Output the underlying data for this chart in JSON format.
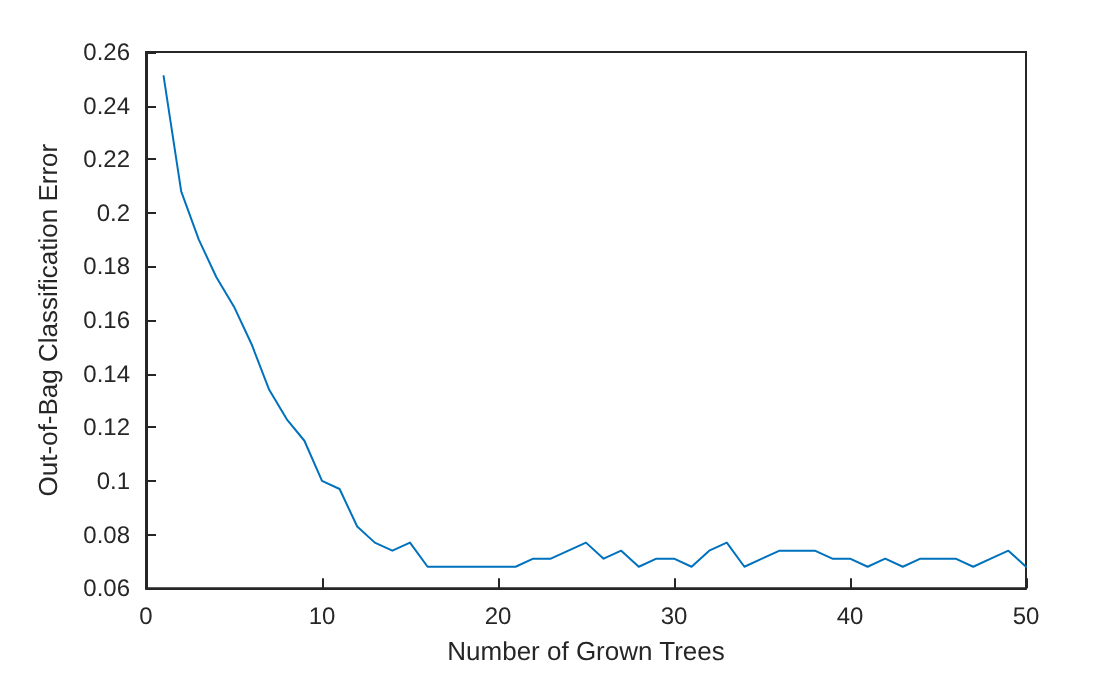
{
  "chart_data": {
    "type": "line",
    "xlabel": "Number of Grown Trees",
    "ylabel": "Out-of-Bag Classification Error",
    "x": [
      1,
      2,
      3,
      4,
      5,
      6,
      7,
      8,
      9,
      10,
      11,
      12,
      13,
      14,
      15,
      16,
      17,
      18,
      19,
      20,
      21,
      22,
      23,
      24,
      25,
      26,
      27,
      28,
      29,
      30,
      31,
      32,
      33,
      34,
      35,
      36,
      37,
      38,
      39,
      40,
      41,
      42,
      43,
      44,
      45,
      46,
      47,
      48,
      49,
      50
    ],
    "series": [
      {
        "color": "#0072bd",
        "values": [
          0.251,
          0.208,
          0.19,
          0.176,
          0.165,
          0.151,
          0.134,
          0.123,
          0.115,
          0.1,
          0.097,
          0.083,
          0.077,
          0.074,
          0.077,
          0.068,
          0.068,
          0.068,
          0.068,
          0.068,
          0.068,
          0.071,
          0.071,
          0.074,
          0.077,
          0.071,
          0.074,
          0.068,
          0.071,
          0.071,
          0.068,
          0.074,
          0.077,
          0.068,
          0.071,
          0.074,
          0.074,
          0.074,
          0.071,
          0.071,
          0.068,
          0.071,
          0.068,
          0.071,
          0.071,
          0.071,
          0.068,
          0.071,
          0.074,
          0.068
        ]
      }
    ],
    "xlim": [
      0,
      50
    ],
    "xticks": [
      0,
      10,
      20,
      30,
      40,
      50
    ],
    "ylim": [
      0.06,
      0.26
    ],
    "yticks": [
      0.06,
      0.08,
      0.1,
      0.12,
      0.14,
      0.16,
      0.18,
      0.2,
      0.22,
      0.24,
      0.26
    ],
    "grid": false,
    "marker": "none",
    "line_style": "solid"
  }
}
